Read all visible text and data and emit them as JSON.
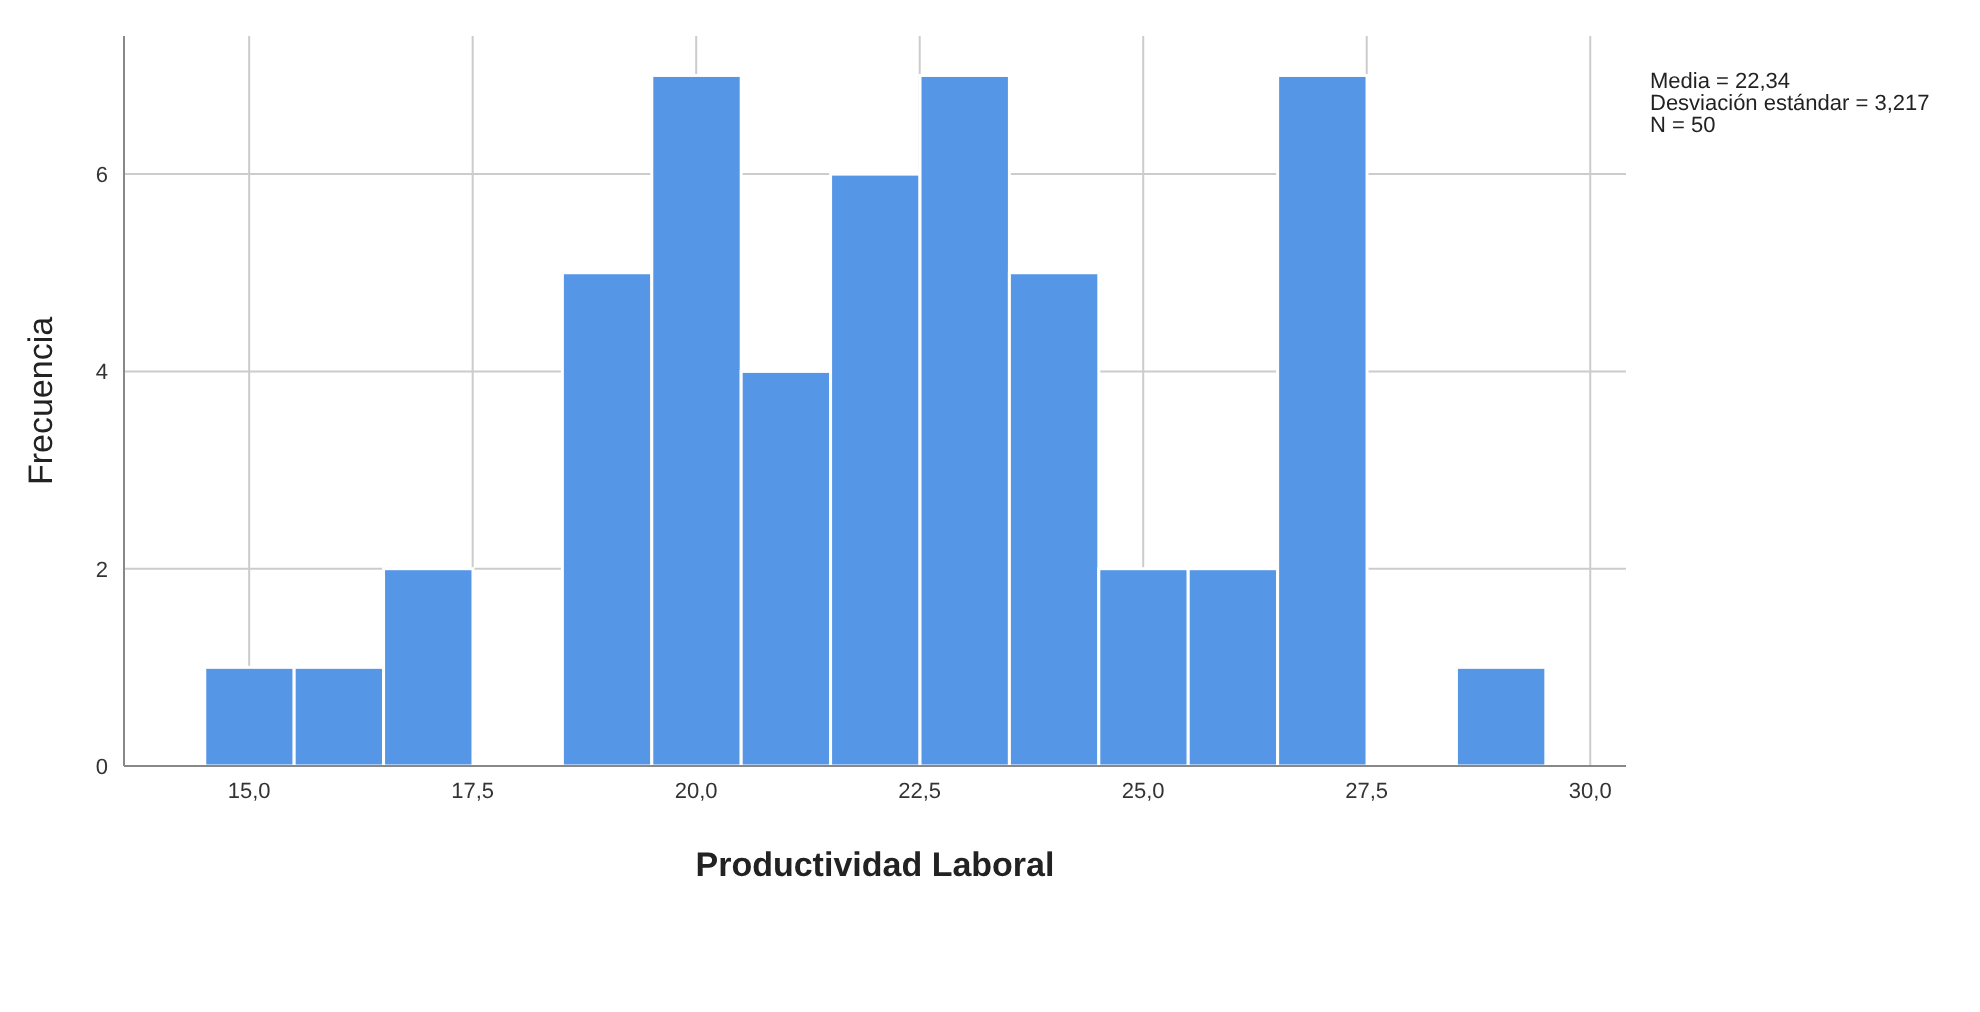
{
  "chart_data": {
    "type": "histogram",
    "xlabel": "Productividad Laboral",
    "ylabel": "Frecuencia",
    "bins": [
      14.5,
      15.5,
      16.5,
      17.5,
      18.5,
      19.5,
      20.5,
      21.5,
      22.5,
      23.5,
      24.5,
      25.5,
      26.5,
      27.5,
      28.5,
      29.5
    ],
    "values": [
      1,
      1,
      2,
      0,
      5,
      7,
      4,
      6,
      7,
      5,
      2,
      2,
      7,
      0,
      1
    ],
    "color": "#5596e6",
    "xlim": [
      13.6,
      30.4
    ],
    "xticks": [
      {
        "value": 15,
        "label": "15,0"
      },
      {
        "value": 17.5,
        "label": "17,5"
      },
      {
        "value": 20,
        "label": "20,0"
      },
      {
        "value": 22.5,
        "label": "22,5"
      },
      {
        "value": 25,
        "label": "25,0"
      },
      {
        "value": 27.5,
        "label": "27,5"
      },
      {
        "value": 30,
        "label": "30,0"
      }
    ],
    "ylim": [
      0,
      7.4
    ],
    "yticks": [
      0,
      2,
      4,
      6
    ],
    "grid": true,
    "annotations": [
      "Media = 22,34",
      "Desviación estándar = 3,217",
      "N = 50"
    ]
  }
}
